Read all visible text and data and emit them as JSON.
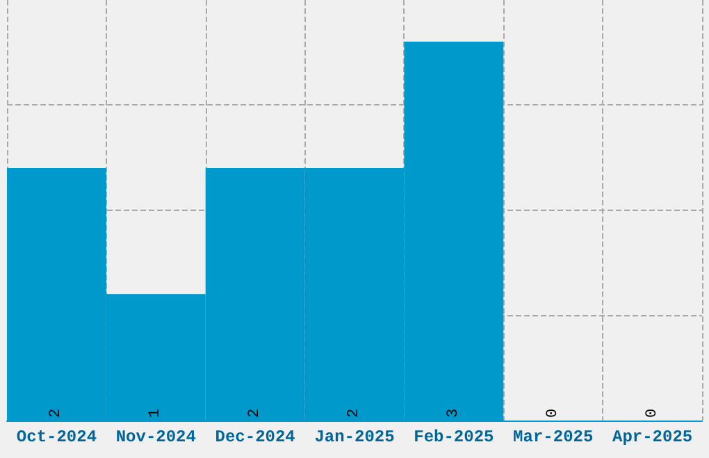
{
  "chart_data": {
    "type": "bar",
    "categories": [
      "Oct-2024",
      "Nov-2024",
      "Dec-2024",
      "Jan-2025",
      "Feb-2025",
      "Mar-2025",
      "Apr-2025"
    ],
    "values": [
      2,
      1,
      2,
      2,
      3,
      0,
      0
    ],
    "color": "#0099cc",
    "data_labels": true,
    "grid": true,
    "tick_labels": "x",
    "ylim": [
      0,
      3.33
    ],
    "yticks": [
      {
        "value": 0,
        "label": null
      },
      {
        "value": 0.83,
        "label": null
      },
      {
        "value": 1.67,
        "label": null
      },
      {
        "value": 2.5,
        "label": null
      }
    ]
  }
}
